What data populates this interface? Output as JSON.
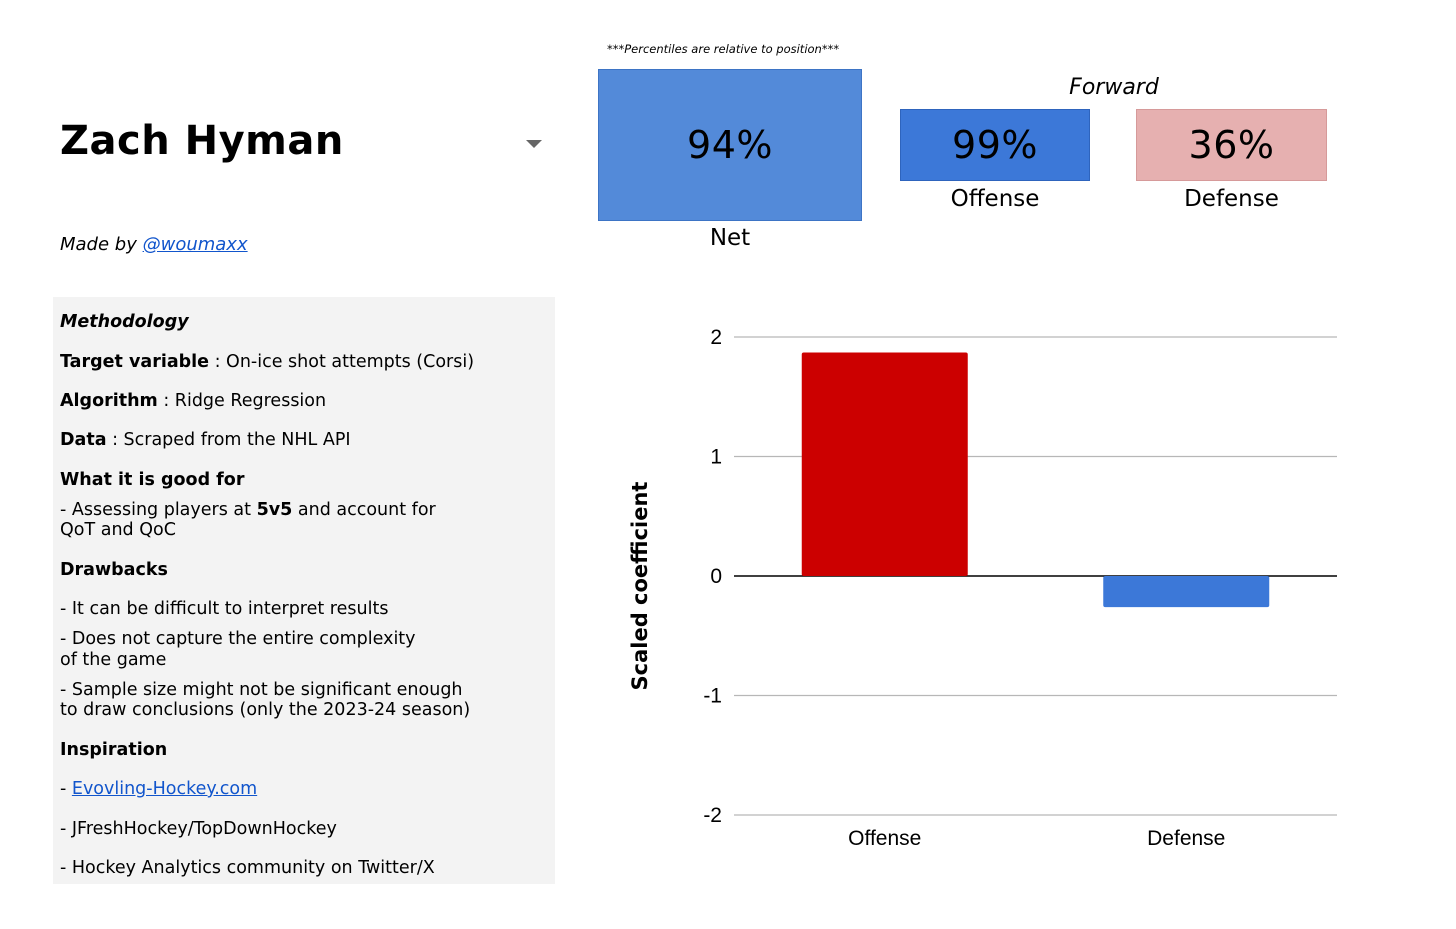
{
  "player": {
    "name": "Zach Hyman"
  },
  "made_by": {
    "prefix": "Made by ",
    "handle": "@woumaxx"
  },
  "percentiles": {
    "note": "***Percentiles are relative to position***",
    "position": "Forward",
    "net": {
      "value": "94%",
      "label": "Net"
    },
    "offense": {
      "value": "99%",
      "label": "Offense"
    },
    "defense": {
      "value": "36%",
      "label": "Defense"
    },
    "colors": {
      "net": "#538ad9",
      "offense": "#3c78d8",
      "defense": "#e6b0b0"
    }
  },
  "methodology": {
    "title": "Methodology",
    "target_key": "Target variable",
    "target_value": " : On-ice shot attempts (Corsi)",
    "algorithm_key": "Algorithm",
    "algorithm_value": " : Ridge Regression",
    "data_key": "Data",
    "data_value": " : Scraped from the NHL API",
    "good_for_heading": "What it is good for",
    "good_for_line1_pre": "- Assessing players at ",
    "good_for_line1_bold": "5v5",
    "good_for_line1_post": " and account for",
    "good_for_line2": "QoT and QoC",
    "drawbacks_heading": "Drawbacks",
    "drawback1": "- It can be difficult to interpret results",
    "drawback2_line1": "- Does not capture the entire complexity",
    "drawback2_line2": "of the game",
    "drawback3_line1": "- Sample size might not be significant enough",
    "drawback3_line2": "to draw conclusions (only the 2023-24 season)",
    "inspiration_heading": "Inspiration",
    "inspiration1_prefix": "- ",
    "inspiration1_link": "Evovling-Hockey.com",
    "inspiration2": "- JFreshHockey/TopDownHockey",
    "inspiration3": "- Hockey Analytics community on Twitter/X"
  },
  "chart_data": {
    "type": "bar",
    "categories": [
      "Offense",
      "Defense"
    ],
    "values": [
      1.87,
      -0.26
    ],
    "colors": [
      "#cc0000",
      "#3c78d8"
    ],
    "ylabel": "Scaled coefficient",
    "xlabel": "",
    "ylim": [
      -2,
      2
    ],
    "yticks": [
      2,
      1,
      0,
      -1,
      -2
    ],
    "grid": true,
    "legend": "none"
  }
}
